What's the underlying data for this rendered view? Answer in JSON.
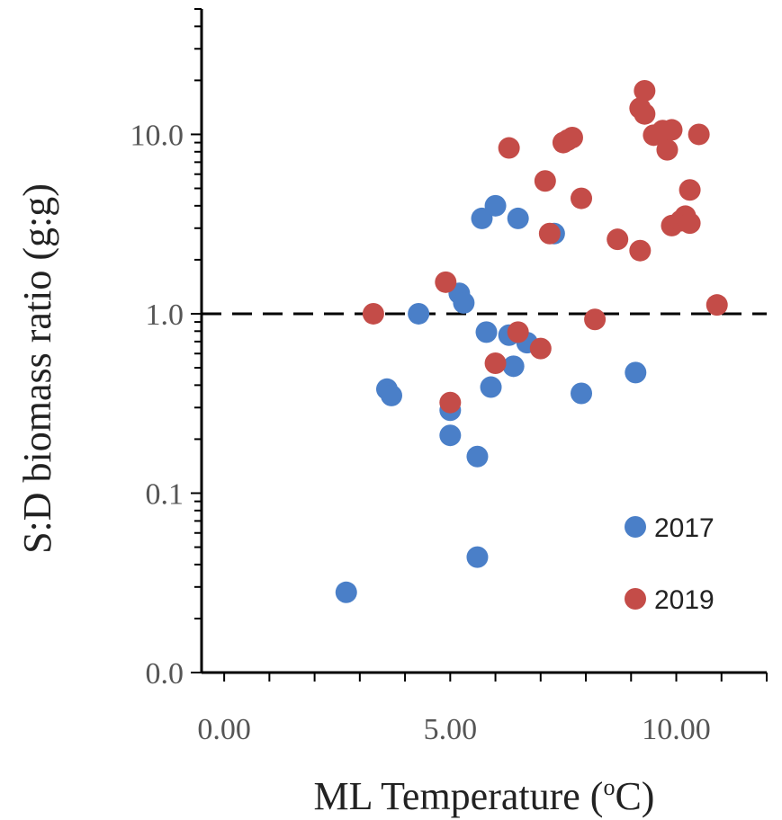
{
  "chart_data": {
    "type": "scatter",
    "xlabel": "ML Temperature (",
    "xlabel_sup": "o",
    "xlabel_end": "C)",
    "ylabel": "S:D biomass ratio (g:g)",
    "xlim": [
      -0.5,
      12.0
    ],
    "ylim": [
      0.01,
      50
    ],
    "yscale": "log",
    "x_ticks": [
      0,
      5,
      10
    ],
    "x_tick_labels": [
      "0.00",
      "5.00",
      "10.00"
    ],
    "y_ticks": [
      0.01,
      0.1,
      1,
      10
    ],
    "y_tick_labels": [
      "0.0",
      "0.1",
      "1.0",
      "10.0"
    ],
    "reference_line": {
      "y": 1.0,
      "style": "dashed"
    },
    "legend_position": "bottom-right",
    "series": [
      {
        "name": "2017",
        "color": "#4a7fc8",
        "points": [
          [
            2.7,
            0.028
          ],
          [
            3.6,
            0.38
          ],
          [
            3.7,
            0.35
          ],
          [
            4.3,
            1.0
          ],
          [
            5.0,
            0.29
          ],
          [
            5.0,
            0.21
          ],
          [
            5.2,
            1.3
          ],
          [
            5.3,
            1.15
          ],
          [
            5.6,
            0.16
          ],
          [
            5.6,
            0.044
          ],
          [
            5.7,
            3.4
          ],
          [
            5.8,
            0.79
          ],
          [
            5.9,
            0.39
          ],
          [
            6.0,
            4.0
          ],
          [
            6.3,
            0.76
          ],
          [
            6.4,
            0.51
          ],
          [
            6.5,
            3.4
          ],
          [
            6.7,
            0.69
          ],
          [
            7.3,
            2.8
          ],
          [
            7.9,
            0.36
          ],
          [
            9.1,
            0.47
          ]
        ]
      },
      {
        "name": "2019",
        "color": "#c44c48",
        "points": [
          [
            3.3,
            1.0
          ],
          [
            4.9,
            1.5
          ],
          [
            5.0,
            0.32
          ],
          [
            6.0,
            0.53
          ],
          [
            6.3,
            8.4
          ],
          [
            6.5,
            0.79
          ],
          [
            7.0,
            0.64
          ],
          [
            7.1,
            5.5
          ],
          [
            7.2,
            2.8
          ],
          [
            7.5,
            9.0
          ],
          [
            7.6,
            9.3
          ],
          [
            7.7,
            9.6
          ],
          [
            7.9,
            4.4
          ],
          [
            8.2,
            0.93
          ],
          [
            8.7,
            2.6
          ],
          [
            9.2,
            2.25
          ],
          [
            9.2,
            14.0
          ],
          [
            9.3,
            13.0
          ],
          [
            9.3,
            17.5
          ],
          [
            9.5,
            9.9
          ],
          [
            9.7,
            10.5
          ],
          [
            9.8,
            8.2
          ],
          [
            9.9,
            10.6
          ],
          [
            9.9,
            3.1
          ],
          [
            10.1,
            3.3
          ],
          [
            10.2,
            3.5
          ],
          [
            10.3,
            3.2
          ],
          [
            10.3,
            4.9
          ],
          [
            10.5,
            10.0
          ],
          [
            10.9,
            1.12
          ]
        ]
      }
    ]
  }
}
